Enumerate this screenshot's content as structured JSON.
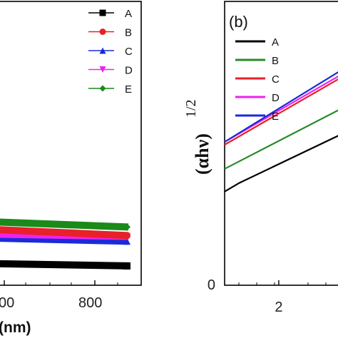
{
  "chart_data": [
    {
      "type": "line",
      "panel": "a",
      "xlabel": "(nm)",
      "xticks": [
        "00",
        "800"
      ],
      "xlim": [
        560,
        900
      ],
      "ylim": [
        0,
        1
      ],
      "legend_position": "top-right",
      "series": [
        {
          "name": "A",
          "color": "#000000",
          "marker": "square",
          "x": [
            560,
            900
          ],
          "y": [
            0.076,
            0.068
          ]
        },
        {
          "name": "B",
          "color": "#e8202a",
          "marker": "circle",
          "x": [
            560,
            900
          ],
          "y": [
            0.196,
            0.175
          ]
        },
        {
          "name": "C",
          "color": "#1a2bd8",
          "marker": "triangle-up",
          "x": [
            560,
            900
          ],
          "y": [
            0.166,
            0.155
          ]
        },
        {
          "name": "D",
          "color": "#ee22ee",
          "marker": "triangle-down",
          "x": [
            560,
            900
          ],
          "y": [
            0.18,
            0.172
          ]
        },
        {
          "name": "E",
          "color": "#1a8a1a",
          "marker": "diamond",
          "x": [
            560,
            900
          ],
          "y": [
            0.223,
            0.205
          ]
        }
      ]
    },
    {
      "type": "line",
      "panel": "b",
      "label": "(b)",
      "ylabel": "(αhν)",
      "ylabel_exponent": "1/2",
      "xticks": [
        "2"
      ],
      "yticks": [
        "0"
      ],
      "xlim": [
        1.25,
        2.85
      ],
      "ylim": [
        0,
        1
      ],
      "legend_position": "top-left",
      "series": [
        {
          "name": "A",
          "color": "#000000",
          "x": [
            1.25,
            1.45,
            2.85
          ],
          "y": [
            0.33,
            0.36,
            0.53
          ]
        },
        {
          "name": "B",
          "color": "#2a8a2a",
          "x": [
            1.25,
            2.85
          ],
          "y": [
            0.41,
            0.62
          ]
        },
        {
          "name": "C",
          "color": "#e8202a",
          "x": [
            1.25,
            2.85
          ],
          "y": [
            0.495,
            0.73
          ]
        },
        {
          "name": "D",
          "color": "#ee22ee",
          "x": [
            1.25,
            2.85
          ],
          "y": [
            0.505,
            0.74
          ]
        },
        {
          "name": "E",
          "color": "#1a2bd8",
          "x": [
            1.25,
            2.85
          ],
          "y": [
            0.505,
            0.755
          ]
        }
      ]
    }
  ]
}
